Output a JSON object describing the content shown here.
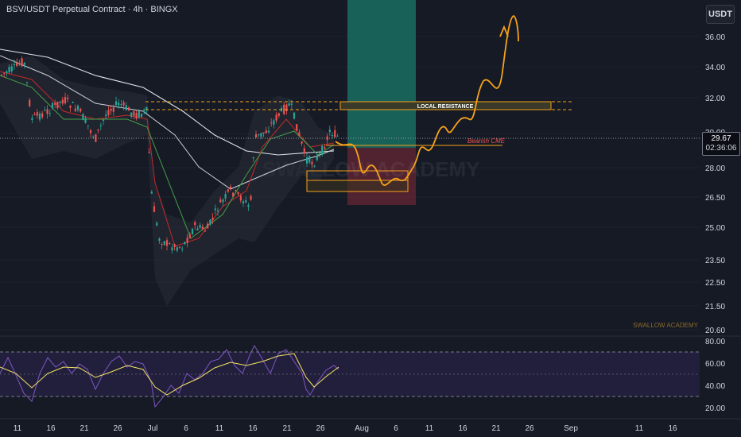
{
  "header": {
    "title": "BSV/USDT Perpetual Contract · 4h · BINGX",
    "currency_button": "USDT"
  },
  "price_axis": {
    "main_ticks": [
      "36.00",
      "34.00",
      "32.00",
      "30.00",
      "28.00",
      "26.50",
      "25.00",
      "23.50",
      "22.50",
      "21.50",
      "20.60"
    ],
    "rsi_ticks": [
      "80.00",
      "60.00",
      "40.00",
      "20.00"
    ],
    "current_price": "29.67",
    "countdown": "02:36:06"
  },
  "time_axis": {
    "labels": [
      "11",
      "16",
      "21",
      "26",
      "Jul",
      "6",
      "11",
      "16",
      "21",
      "26",
      "Aug",
      "6",
      "11",
      "16",
      "21",
      "26",
      "Sep",
      "11",
      "16"
    ]
  },
  "annotations": {
    "local_resistance": "LOCAL RESISTANCE",
    "bearish_cme": "Bearish CME",
    "watermark": "SWALLOW ACADEMY",
    "watermark_small": "SWALLOW ACADEMY"
  },
  "colors": {
    "background": "#161a25",
    "candle_up": "#26a69a",
    "candle_down": "#ef5350",
    "projection": "#f7a21b",
    "rsi_line": "#7e57c2",
    "rsi_signal": "#f5e663",
    "long_target_zone": "#1a7a6a",
    "long_stop_zone": "#7a2a3a"
  },
  "icons": {
    "projection_arrow": "arrow-up-icon"
  }
}
